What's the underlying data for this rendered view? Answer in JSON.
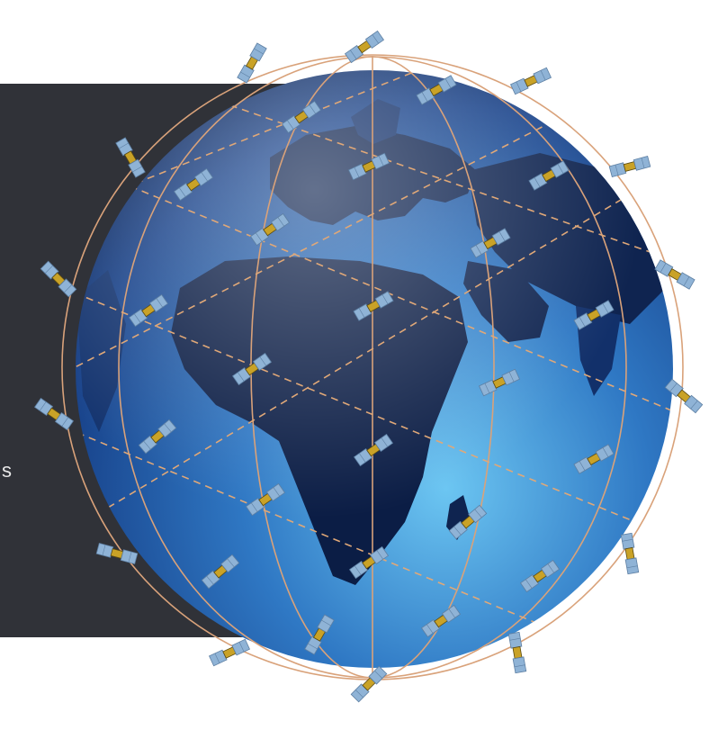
{
  "panel": {
    "text_fragment": "s",
    "background_color": "#303238",
    "text_color": "#e8e8e8"
  },
  "globe": {
    "depicts": "earth-globe-africa-europe",
    "ocean_color": "#2f78c4",
    "land_color": "#0f2450",
    "orbit_color": "#d9a27a"
  },
  "satellites": {
    "icon": "satellite-icon",
    "panel_color": "#8fb3d6",
    "body_color": "#c9a227"
  }
}
